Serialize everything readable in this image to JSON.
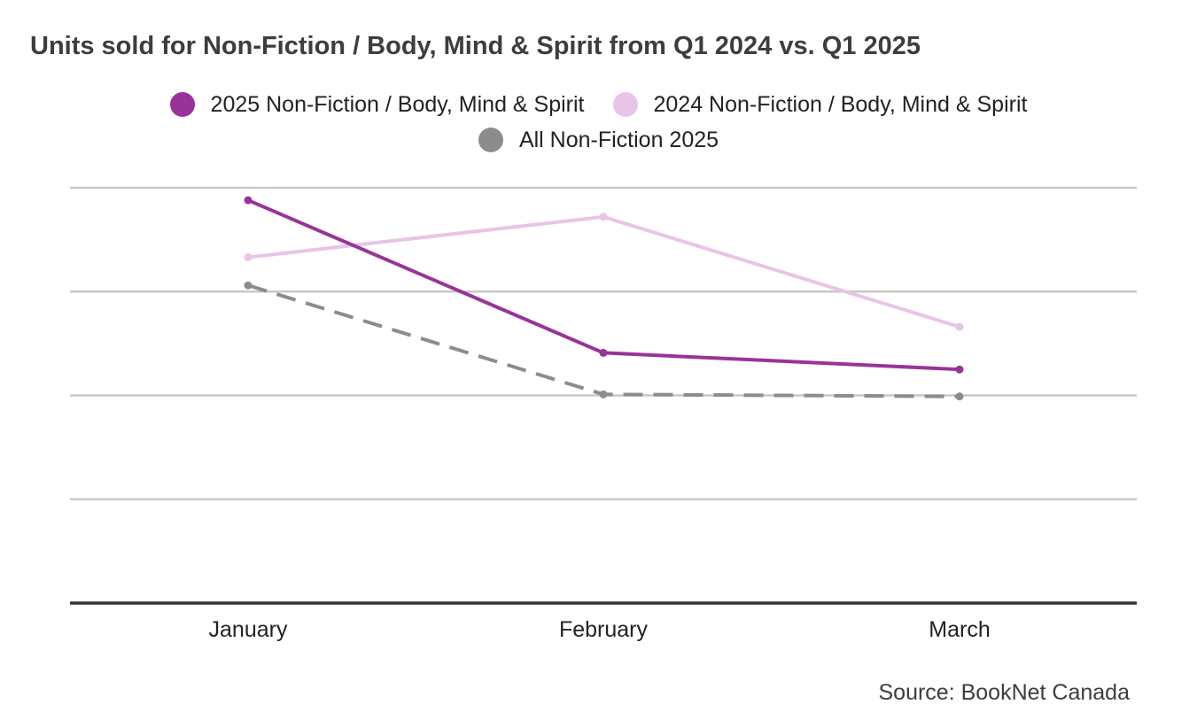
{
  "chart_data": {
    "type": "line",
    "title": "Units sold for Non-Fiction / Body, Mind & Spirit from Q1 2024 vs. Q1 2025",
    "xlabel": "",
    "ylabel": "",
    "categories": [
      "January",
      "February",
      "March"
    ],
    "ylim": [
      0,
      4
    ],
    "grid": true,
    "legend_position": "top-center",
    "series": [
      {
        "name": "2025 Non-Fiction / Body, Mind & Spirit",
        "values": [
          3.88,
          2.41,
          2.25
        ],
        "color": "#993399",
        "dashed": false
      },
      {
        "name": "2024 Non-Fiction / Body, Mind & Spirit",
        "values": [
          3.33,
          3.72,
          2.66
        ],
        "color": "#e8c4e8",
        "dashed": false
      },
      {
        "name": "All Non-Fiction 2025",
        "values": [
          3.06,
          2.01,
          1.99
        ],
        "color": "#8c8c8c",
        "dashed": true
      }
    ],
    "source": "Source: BookNet Canada"
  }
}
